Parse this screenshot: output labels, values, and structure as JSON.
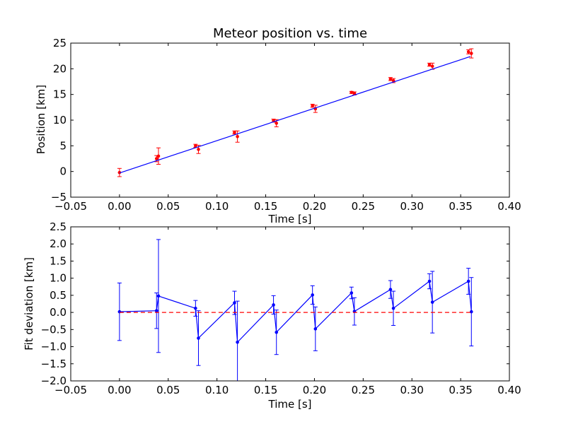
{
  "chart_data": [
    {
      "type": "scatter",
      "title": "Meteor position vs. time",
      "xlabel": "Time [s]",
      "ylabel": "Position [km]",
      "xlim": [
        -0.05,
        0.4
      ],
      "ylim": [
        -5,
        25
      ],
      "xticks": [
        -0.05,
        0.0,
        0.05,
        0.1,
        0.15,
        0.2,
        0.25,
        0.3,
        0.35,
        0.4
      ],
      "xtick_labels": [
        "−0.05",
        "0.00",
        "0.05",
        "0.10",
        "0.15",
        "0.20",
        "0.25",
        "0.30",
        "0.35",
        "0.40"
      ],
      "yticks": [
        -5,
        0,
        5,
        10,
        15,
        20,
        25
      ],
      "ytick_labels": [
        "−5",
        "0",
        "5",
        "10",
        "15",
        "20",
        "25"
      ],
      "grid": false,
      "series": [
        {
          "kind": "errorbar",
          "color": "#ff0000",
          "x": [
            0.0,
            0.038,
            0.04,
            0.078,
            0.081,
            0.118,
            0.121,
            0.158,
            0.161,
            0.198,
            0.201,
            0.238,
            0.241,
            0.278,
            0.281,
            0.318,
            0.321,
            0.358,
            0.361
          ],
          "y": [
            -0.2,
            2.5,
            3.0,
            5.0,
            4.3,
            7.6,
            6.8,
            9.9,
            9.4,
            12.8,
            12.2,
            15.4,
            15.2,
            18.0,
            17.7,
            20.8,
            20.5,
            23.3,
            23.0
          ],
          "yerr": [
            0.8,
            0.6,
            1.6,
            0.3,
            0.8,
            0.3,
            1.1,
            0.3,
            0.7,
            0.3,
            0.7,
            0.2,
            0.3,
            0.3,
            0.4,
            0.3,
            0.6,
            0.4,
            0.9
          ]
        },
        {
          "kind": "line",
          "color": "#0000ff",
          "x": [
            0.0,
            0.36
          ],
          "y": [
            -0.3,
            22.4
          ]
        }
      ]
    },
    {
      "type": "line",
      "title": "",
      "xlabel": "Time [s]",
      "ylabel": "Fit deviation [km]",
      "xlim": [
        -0.05,
        0.4
      ],
      "ylim": [
        -2.0,
        2.5
      ],
      "xticks": [
        -0.05,
        0.0,
        0.05,
        0.1,
        0.15,
        0.2,
        0.25,
        0.3,
        0.35,
        0.4
      ],
      "xtick_labels": [
        "−0.05",
        "0.00",
        "0.05",
        "0.10",
        "0.15",
        "0.20",
        "0.25",
        "0.30",
        "0.35",
        "0.40"
      ],
      "yticks": [
        -2.0,
        -1.5,
        -1.0,
        -0.5,
        0.0,
        0.5,
        1.0,
        1.5,
        2.0,
        2.5
      ],
      "ytick_labels": [
        "−2.0",
        "−1.5",
        "−1.0",
        "−0.5",
        "0.0",
        "0.5",
        "1.0",
        "1.5",
        "2.0",
        "2.5"
      ],
      "grid": false,
      "series": [
        {
          "kind": "errorbar-line",
          "color": "#0000ff",
          "x": [
            0.0,
            0.038,
            0.04,
            0.078,
            0.081,
            0.118,
            0.121,
            0.158,
            0.161,
            0.198,
            0.201,
            0.238,
            0.241,
            0.278,
            0.281,
            0.318,
            0.321,
            0.358,
            0.361
          ],
          "y": [
            0.02,
            0.05,
            0.48,
            0.12,
            -0.75,
            0.28,
            -0.87,
            0.22,
            -0.58,
            0.51,
            -0.48,
            0.57,
            0.03,
            0.67,
            0.12,
            0.91,
            0.3,
            0.91,
            0.02
          ],
          "yerr": [
            0.84,
            0.52,
            1.65,
            0.23,
            0.8,
            0.34,
            1.2,
            0.27,
            0.65,
            0.27,
            0.64,
            0.17,
            0.4,
            0.26,
            0.5,
            0.22,
            0.9,
            0.38,
            1.0
          ]
        },
        {
          "kind": "dashed-line",
          "color": "#ff0000",
          "x": [
            0.0,
            0.36
          ],
          "y": [
            0.0,
            0.0
          ]
        }
      ]
    }
  ]
}
